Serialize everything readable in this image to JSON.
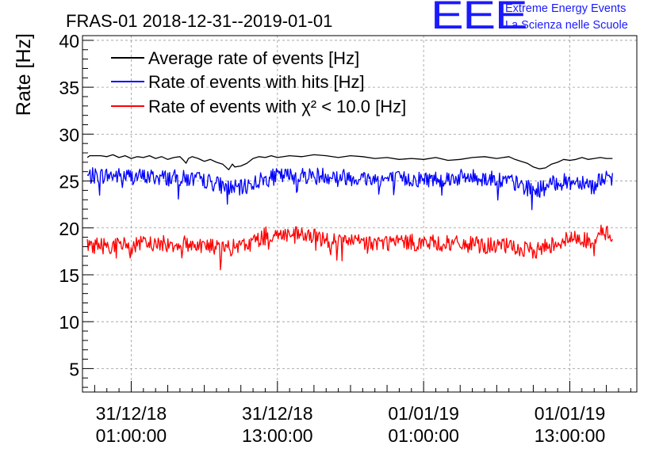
{
  "chart_data": {
    "type": "line",
    "title": "FRAS-01 2018-12-31--2019-01-01",
    "xlabel": "",
    "ylabel": "Rate [Hz]",
    "ylim": [
      2.5,
      40.5
    ],
    "yticks": [
      5,
      10,
      15,
      20,
      25,
      30,
      35,
      40
    ],
    "x_unit": "hours since 2018-12-31 00:00",
    "xlim": [
      -3.0,
      42.5
    ],
    "xticks": [
      {
        "x": 1,
        "line1": "31/12/18",
        "line2": "01:00:00"
      },
      {
        "x": 13,
        "line1": "31/12/18",
        "line2": "13:00:00"
      },
      {
        "x": 25,
        "line1": "01/01/19",
        "line2": "01:00:00"
      },
      {
        "x": 37,
        "line1": "01/01/19",
        "line2": "13:00:00"
      }
    ],
    "grid": true,
    "legend_position": "top-left",
    "series": [
      {
        "name": "Average rate of events [Hz]",
        "color": "#000000",
        "points": [
          [
            -2.6,
            27.5
          ],
          [
            -2.4,
            27.7
          ],
          [
            -1.5,
            27.7
          ],
          [
            -1.0,
            27.6
          ],
          [
            -0.5,
            27.8
          ],
          [
            0,
            27.5
          ],
          [
            0.5,
            27.7
          ],
          [
            1.0,
            27.4
          ],
          [
            1.5,
            27.6
          ],
          [
            2.0,
            27.5
          ],
          [
            2.5,
            27.7
          ],
          [
            3.0,
            27.4
          ],
          [
            3.5,
            27.6
          ],
          [
            4.0,
            27.3
          ],
          [
            4.5,
            27.5
          ],
          [
            5.0,
            27.6
          ],
          [
            5.3,
            27.2
          ],
          [
            5.5,
            26.9
          ],
          [
            5.7,
            27.4
          ],
          [
            6.0,
            27.6
          ],
          [
            6.5,
            27.4
          ],
          [
            7.0,
            27.1
          ],
          [
            7.5,
            27.3
          ],
          [
            8.0,
            27.0
          ],
          [
            8.5,
            26.8
          ],
          [
            9.0,
            26.2
          ],
          [
            9.3,
            26.8
          ],
          [
            9.5,
            26.5
          ],
          [
            10.0,
            26.6
          ],
          [
            10.5,
            26.9
          ],
          [
            11.0,
            27.4
          ],
          [
            11.5,
            27.6
          ],
          [
            12.0,
            27.5
          ],
          [
            12.5,
            27.7
          ],
          [
            13.0,
            27.5
          ],
          [
            14.0,
            27.7
          ],
          [
            15.0,
            27.6
          ],
          [
            16.0,
            27.8
          ],
          [
            17.0,
            27.7
          ],
          [
            18.0,
            27.5
          ],
          [
            19.0,
            27.7
          ],
          [
            20.0,
            27.6
          ],
          [
            21.0,
            27.4
          ],
          [
            22.0,
            27.5
          ],
          [
            23.0,
            27.3
          ],
          [
            24.0,
            27.4
          ],
          [
            25.0,
            27.3
          ],
          [
            26.0,
            27.5
          ],
          [
            27.0,
            27.2
          ],
          [
            28.0,
            27.3
          ],
          [
            29.0,
            27.5
          ],
          [
            30.0,
            27.6
          ],
          [
            31.0,
            27.4
          ],
          [
            32.0,
            27.6
          ],
          [
            32.5,
            27.3
          ],
          [
            33.0,
            27.1
          ],
          [
            33.5,
            26.9
          ],
          [
            34.0,
            26.5
          ],
          [
            34.5,
            26.3
          ],
          [
            35.0,
            26.4
          ],
          [
            35.5,
            26.8
          ],
          [
            36.0,
            27.0
          ],
          [
            36.5,
            27.3
          ],
          [
            37.0,
            27.2
          ],
          [
            37.5,
            27.3
          ],
          [
            38.0,
            27.5
          ],
          [
            38.5,
            27.3
          ],
          [
            39.0,
            27.4
          ],
          [
            39.5,
            27.5
          ],
          [
            40.0,
            27.4
          ],
          [
            40.5,
            27.4
          ]
        ]
      },
      {
        "name": "Rate of events with hits [Hz]",
        "color": "#0000ff",
        "noise": 0.9,
        "points": [
          [
            -2.6,
            25.5
          ],
          [
            -1.0,
            25.6
          ],
          [
            1.0,
            25.5
          ],
          [
            3.0,
            25.4
          ],
          [
            5.0,
            25.3
          ],
          [
            7.0,
            25.1
          ],
          [
            8.0,
            24.7
          ],
          [
            9.0,
            24.3
          ],
          [
            10.0,
            24.2
          ],
          [
            11.0,
            24.8
          ],
          [
            12.0,
            25.2
          ],
          [
            13.0,
            25.5
          ],
          [
            15.0,
            25.6
          ],
          [
            17.0,
            25.6
          ],
          [
            19.0,
            25.4
          ],
          [
            21.0,
            25.2
          ],
          [
            23.0,
            25.2
          ],
          [
            25.0,
            25.2
          ],
          [
            27.0,
            25.3
          ],
          [
            29.0,
            25.4
          ],
          [
            31.0,
            25.2
          ],
          [
            32.0,
            25.0
          ],
          [
            33.0,
            24.5
          ],
          [
            34.0,
            24.0
          ],
          [
            35.0,
            24.3
          ],
          [
            36.0,
            24.9
          ],
          [
            37.0,
            24.9
          ],
          [
            38.0,
            25.0
          ],
          [
            38.5,
            24.8
          ],
          [
            39.0,
            24.3
          ],
          [
            39.5,
            25.4
          ],
          [
            40.5,
            25.0
          ]
        ]
      },
      {
        "name": "Rate of events with χ² < 10.0 [Hz]",
        "color": "#ff0000",
        "noise": 0.9,
        "points": [
          [
            -2.6,
            18.2
          ],
          [
            -1.0,
            18.1
          ],
          [
            1.0,
            18.2
          ],
          [
            3.0,
            18.3
          ],
          [
            5.0,
            18.3
          ],
          [
            7.0,
            18.2
          ],
          [
            8.0,
            17.9
          ],
          [
            9.0,
            17.8
          ],
          [
            10.0,
            18.0
          ],
          [
            11.0,
            18.5
          ],
          [
            12.0,
            19.2
          ],
          [
            13.0,
            19.3
          ],
          [
            15.0,
            19.2
          ],
          [
            17.0,
            18.8
          ],
          [
            19.0,
            18.5
          ],
          [
            21.0,
            18.4
          ],
          [
            23.0,
            18.5
          ],
          [
            25.0,
            18.4
          ],
          [
            27.0,
            18.3
          ],
          [
            29.0,
            18.2
          ],
          [
            31.0,
            18.1
          ],
          [
            32.0,
            18.0
          ],
          [
            33.0,
            17.7
          ],
          [
            34.0,
            17.5
          ],
          [
            35.0,
            18.0
          ],
          [
            36.0,
            18.5
          ],
          [
            37.0,
            18.8
          ],
          [
            38.0,
            19.0
          ],
          [
            38.5,
            18.5
          ],
          [
            39.0,
            17.9
          ],
          [
            39.5,
            19.6
          ],
          [
            40.5,
            19.2
          ]
        ]
      }
    ]
  },
  "logo": {
    "letters": "EEE",
    "line1": "Extreme Energy Events",
    "line2": "La Scienza nelle Scuole"
  }
}
